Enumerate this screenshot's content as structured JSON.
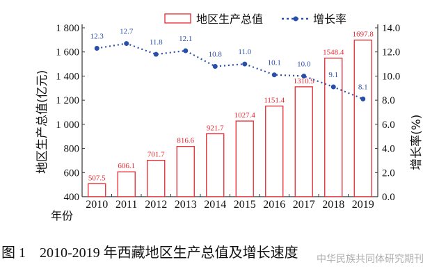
{
  "chart_data": {
    "type": "bar+line",
    "categories": [
      "2010",
      "2011",
      "2012",
      "2013",
      "2014",
      "2015",
      "2016",
      "2017",
      "2018",
      "2019"
    ],
    "series": [
      {
        "name": "地区生产总值",
        "type": "bar",
        "axis": "left",
        "color": "#e8262f",
        "values": [
          507.5,
          606.1,
          701.7,
          816.6,
          921.7,
          1027.4,
          1151.4,
          1310.9,
          1548.4,
          1697.8
        ]
      },
      {
        "name": "增长率",
        "type": "line",
        "style": "dotted",
        "axis": "right",
        "color": "#2a4fa8",
        "values": [
          12.3,
          12.7,
          11.8,
          12.1,
          10.8,
          11.0,
          10.1,
          10.0,
          9.1,
          8.1
        ]
      }
    ],
    "xlabel": "年份",
    "ylabel": "地区生产总值(亿元)",
    "y2label": "增长率(%)",
    "ylim": [
      400,
      1800
    ],
    "y2lim": [
      0,
      14
    ],
    "yticks": [
      "400",
      "600",
      "800",
      "1 000",
      "1 200",
      "1 400",
      "1 600",
      "1 800"
    ],
    "y2ticks": [
      "0.0",
      "2.0",
      "4.0",
      "6.0",
      "8.0",
      "10.0",
      "12.0",
      "14.0"
    ],
    "bar_labels": [
      "507.5",
      "606.1",
      "701.7",
      "816.6",
      "921.7",
      "1027.4",
      "1151.4",
      "1310.9",
      "1548.4",
      "1697.8"
    ],
    "line_labels": [
      "12.3",
      "12.7",
      "11.8",
      "12.1",
      "10.8",
      "11.0",
      "10.1",
      "10.0",
      "9.1",
      "8.1"
    ],
    "legend": "top",
    "grid": false
  },
  "caption": "图 1　2010-2019 年西藏地区生产总值及增长速度",
  "watermark": "中华民族共同体研究期刊"
}
